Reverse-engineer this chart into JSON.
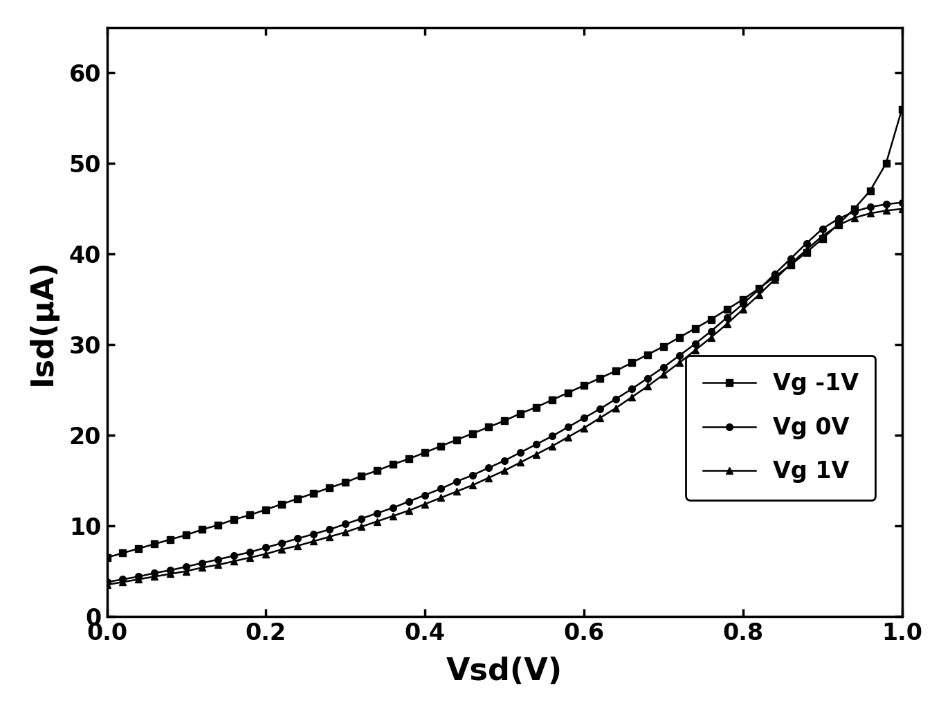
{
  "xlabel": "Vsd(V)",
  "ylabel": "Isd(μA)",
  "xlim": [
    0.0,
    1.0
  ],
  "ylim": [
    0,
    65
  ],
  "xticks": [
    0.0,
    0.2,
    0.4,
    0.6,
    0.8,
    1.0
  ],
  "yticks": [
    0,
    10,
    20,
    30,
    40,
    50,
    60
  ],
  "xlabel_fontsize": 32,
  "ylabel_fontsize": 32,
  "tick_fontsize": 24,
  "legend_fontsize": 22,
  "line_color": "#000000",
  "marker_size": 7,
  "line_width": 1.8,
  "series": [
    {
      "label": "Vg -1V",
      "marker": "s",
      "x": [
        0.0,
        0.02,
        0.04,
        0.06,
        0.08,
        0.1,
        0.12,
        0.14,
        0.16,
        0.18,
        0.2,
        0.22,
        0.24,
        0.26,
        0.28,
        0.3,
        0.32,
        0.34,
        0.36,
        0.38,
        0.4,
        0.42,
        0.44,
        0.46,
        0.48,
        0.5,
        0.52,
        0.54,
        0.56,
        0.58,
        0.6,
        0.62,
        0.64,
        0.66,
        0.68,
        0.7,
        0.72,
        0.74,
        0.76,
        0.78,
        0.8,
        0.82,
        0.84,
        0.86,
        0.88,
        0.9,
        0.92,
        0.94,
        0.96,
        0.98,
        1.0
      ],
      "y": [
        6.5,
        7.0,
        7.5,
        8.0,
        8.5,
        9.0,
        9.6,
        10.1,
        10.7,
        11.2,
        11.8,
        12.4,
        13.0,
        13.6,
        14.2,
        14.8,
        15.5,
        16.1,
        16.8,
        17.4,
        18.1,
        18.8,
        19.5,
        20.2,
        20.9,
        21.6,
        22.4,
        23.1,
        23.9,
        24.7,
        25.5,
        26.3,
        27.1,
        28.0,
        28.9,
        29.8,
        30.8,
        31.8,
        32.8,
        33.9,
        35.0,
        36.2,
        37.5,
        38.8,
        40.2,
        41.7,
        43.3,
        45.0,
        47.0,
        50.0,
        56.0
      ]
    },
    {
      "label": "Vg 0V",
      "marker": "o",
      "x": [
        0.0,
        0.02,
        0.04,
        0.06,
        0.08,
        0.1,
        0.12,
        0.14,
        0.16,
        0.18,
        0.2,
        0.22,
        0.24,
        0.26,
        0.28,
        0.3,
        0.32,
        0.34,
        0.36,
        0.38,
        0.4,
        0.42,
        0.44,
        0.46,
        0.48,
        0.5,
        0.52,
        0.54,
        0.56,
        0.58,
        0.6,
        0.62,
        0.64,
        0.66,
        0.68,
        0.7,
        0.72,
        0.74,
        0.76,
        0.78,
        0.8,
        0.82,
        0.84,
        0.86,
        0.88,
        0.9,
        0.92,
        0.94,
        0.96,
        0.98,
        1.0
      ],
      "y": [
        3.8,
        4.1,
        4.4,
        4.8,
        5.1,
        5.5,
        5.9,
        6.3,
        6.7,
        7.1,
        7.6,
        8.1,
        8.6,
        9.1,
        9.6,
        10.2,
        10.8,
        11.4,
        12.0,
        12.7,
        13.4,
        14.1,
        14.9,
        15.6,
        16.4,
        17.2,
        18.1,
        19.0,
        19.9,
        20.9,
        21.9,
        22.9,
        24.0,
        25.1,
        26.3,
        27.5,
        28.8,
        30.1,
        31.5,
        33.0,
        34.5,
        36.1,
        37.8,
        39.5,
        41.2,
        42.8,
        43.9,
        44.7,
        45.2,
        45.5,
        45.7
      ]
    },
    {
      "label": "Vg 1V",
      "marker": "^",
      "x": [
        0.0,
        0.02,
        0.04,
        0.06,
        0.08,
        0.1,
        0.12,
        0.14,
        0.16,
        0.18,
        0.2,
        0.22,
        0.24,
        0.26,
        0.28,
        0.3,
        0.32,
        0.34,
        0.36,
        0.38,
        0.4,
        0.42,
        0.44,
        0.46,
        0.48,
        0.5,
        0.52,
        0.54,
        0.56,
        0.58,
        0.6,
        0.62,
        0.64,
        0.66,
        0.68,
        0.7,
        0.72,
        0.74,
        0.76,
        0.78,
        0.8,
        0.82,
        0.84,
        0.86,
        0.88,
        0.9,
        0.92,
        0.94,
        0.96,
        0.98,
        1.0
      ],
      "y": [
        3.5,
        3.8,
        4.1,
        4.4,
        4.7,
        5.0,
        5.4,
        5.7,
        6.1,
        6.5,
        6.9,
        7.4,
        7.8,
        8.3,
        8.8,
        9.3,
        9.9,
        10.5,
        11.1,
        11.7,
        12.4,
        13.1,
        13.8,
        14.5,
        15.3,
        16.1,
        17.0,
        17.9,
        18.8,
        19.8,
        20.8,
        21.9,
        23.0,
        24.2,
        25.4,
        26.7,
        28.0,
        29.4,
        30.8,
        32.3,
        33.9,
        35.5,
        37.2,
        38.9,
        40.5,
        42.0,
        43.2,
        44.0,
        44.5,
        44.8,
        45.0
      ]
    }
  ]
}
